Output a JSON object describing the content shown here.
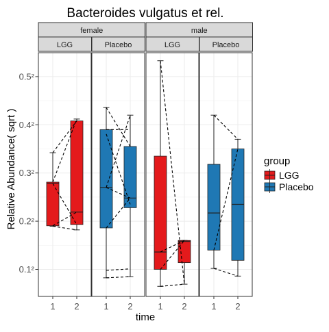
{
  "chart_data": {
    "type": "boxplot",
    "title": "Bacteroides vulgatus et rel.",
    "xlabel": "time",
    "ylabel": "Relative Abundance( sqrt )",
    "y_scale": "sqrt",
    "ylim": [
      0.0085,
      0.32
    ],
    "y_ticks": [
      {
        "value": 0.01,
        "label": "0.1²"
      },
      {
        "value": 0.04,
        "label": "0.2²"
      },
      {
        "value": 0.09,
        "label": "0.3²"
      },
      {
        "value": 0.16,
        "label": "0.4²"
      },
      {
        "value": 0.25,
        "label": "0.5²"
      }
    ],
    "x_categories": [
      "1",
      "2"
    ],
    "grid": true,
    "legend": {
      "title": "group",
      "position": "right",
      "entries": [
        {
          "label": "LGG",
          "color": "#e41a1c"
        },
        {
          "label": "Placebo",
          "color": "#1f78b4"
        }
      ]
    },
    "facet_top": [
      "female",
      "male"
    ],
    "facets": [
      {
        "sex": "female",
        "group": "LGG",
        "color": "#e41a1c",
        "boxes": [
          {
            "time": "1",
            "min": 0.0359,
            "q1": 0.0363,
            "median": 0.0774,
            "q3": 0.079,
            "max": 0.117
          },
          {
            "time": "2",
            "min": 0.0331,
            "q1": 0.0372,
            "median": 0.0479,
            "q3": 0.1665,
            "max": 0.1697
          }
        ],
        "pairs": [
          [
            0.117,
            0.1665
          ],
          [
            0.079,
            0.1697
          ],
          [
            0.0774,
            0.0372
          ],
          [
            0.0363,
            0.0479
          ],
          [
            0.0359,
            0.0331
          ]
        ]
      },
      {
        "sex": "female",
        "group": "Placebo",
        "color": "#1f78b4",
        "boxes": [
          {
            "time": "1",
            "min": 0.0068,
            "q1": 0.0346,
            "median": 0.0729,
            "q3": 0.1521,
            "max": 0.19
          },
          {
            "time": "2",
            "min": 0.0072,
            "q1": 0.052,
            "median": 0.0615,
            "q3": 0.126,
            "max": 0.1764
          }
        ],
        "pairs": [
          [
            0.19,
            0.126
          ],
          [
            0.1521,
            0.1522
          ],
          [
            0.145,
            0.0552
          ],
          [
            0.0729,
            0.1764
          ],
          [
            0.0729,
            0.0615
          ],
          [
            0.0346,
            0.0615
          ],
          [
            0.0096,
            0.0102
          ],
          [
            0.0068,
            0.0072
          ]
        ]
      },
      {
        "sex": "male",
        "group": "LGG",
        "color": "#e41a1c",
        "boxes": [
          {
            "time": "1",
            "min": 0.0042,
            "q1": 0.01,
            "median": 0.0185,
            "q3": 0.1122,
            "max": 0.284
          },
          {
            "time": "2",
            "min": 0.0048,
            "q1": 0.013,
            "median": 0.025,
            "q3": 0.0256,
            "max": 0.0256
          }
        ],
        "pairs": [
          [
            0.284,
            0.0048
          ],
          [
            0.0185,
            0.0256
          ],
          [
            0.01,
            0.0256
          ],
          [
            0.0042,
            0.0048
          ]
        ]
      },
      {
        "sex": "male",
        "group": "Placebo",
        "color": "#1f78b4",
        "boxes": [
          {
            "time": "1",
            "min": 0.0104,
            "q1": 0.0196,
            "median": 0.0471,
            "q3": 0.1011,
            "max": 0.1764
          },
          {
            "time": "2",
            "min": 0.0074,
            "q1": 0.0141,
            "median": 0.0552,
            "q3": 0.1225,
            "max": 0.1369
          }
        ],
        "pairs": [
          [
            0.1764,
            0.1369
          ],
          [
            0.0196,
            0.1225
          ],
          [
            0.0104,
            0.0074
          ]
        ]
      }
    ]
  }
}
